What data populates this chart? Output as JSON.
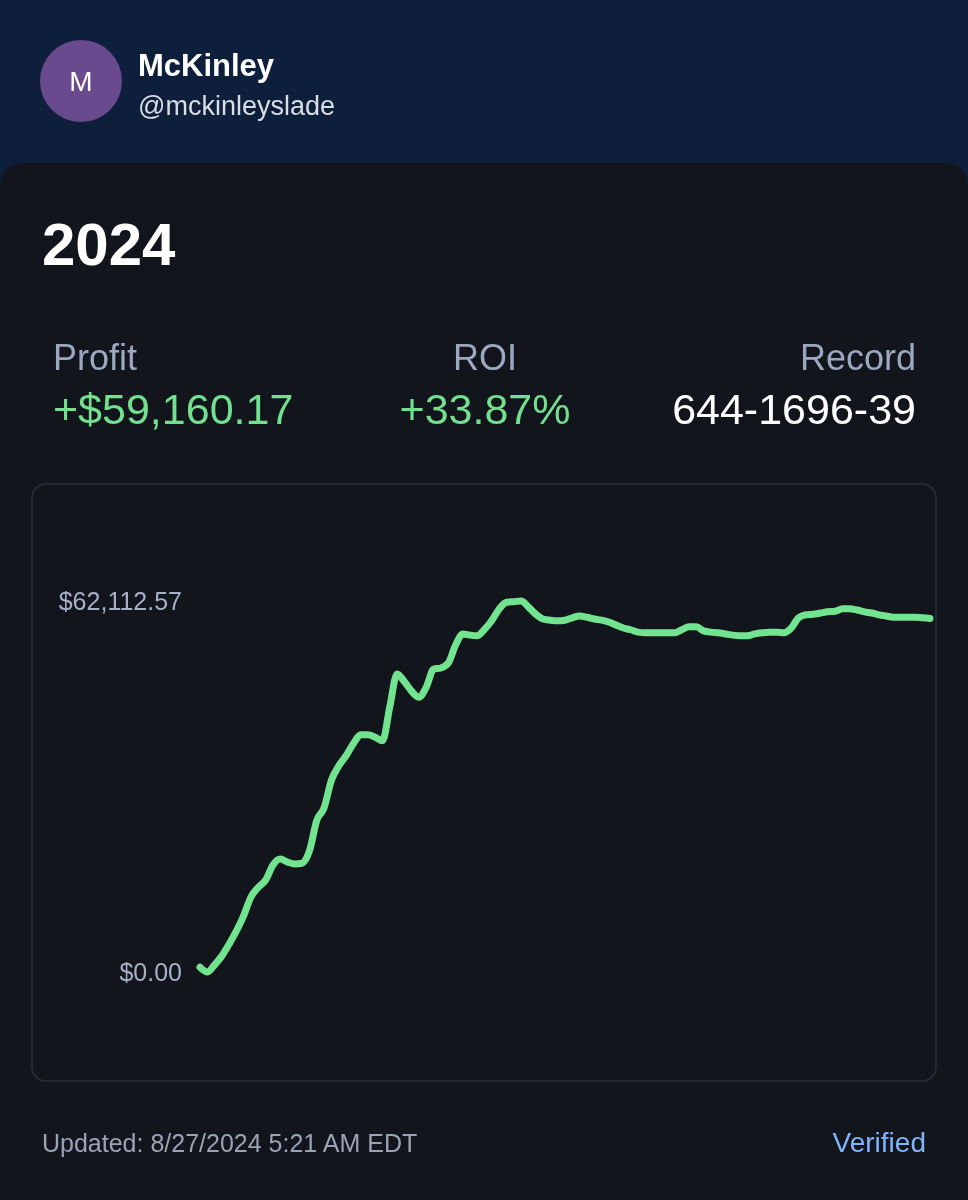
{
  "chart_data": {
    "type": "line",
    "title": "2024",
    "categories": [
      null,
      null,
      null,
      null,
      null,
      null,
      null,
      null,
      null,
      null,
      null,
      null,
      null,
      null,
      null,
      null,
      null,
      null,
      null,
      null,
      null,
      null,
      null,
      null,
      null,
      null,
      null,
      null,
      null,
      null,
      null,
      null,
      null,
      null,
      null,
      null,
      null,
      null,
      null,
      null,
      null,
      null,
      null,
      null,
      null,
      null,
      null,
      null,
      null,
      null,
      null,
      null,
      null,
      null,
      null,
      null,
      null,
      null,
      null,
      null,
      null,
      null,
      null,
      null,
      null,
      null,
      null,
      null,
      null,
      null,
      null,
      null,
      null,
      null,
      null,
      null,
      null,
      null,
      null,
      null,
      null,
      null,
      null,
      null,
      null,
      null,
      null,
      null,
      null,
      null,
      null,
      null,
      null,
      null,
      null,
      null,
      null,
      null,
      null,
      null,
      null
    ],
    "color": "#72e38f",
    "ylim": [
      0,
      62112.57
    ],
    "yticks": [
      {
        "value": 0,
        "label": "$0.00"
      },
      {
        "value": 62112.57,
        "label": "$62,112.57"
      }
    ],
    "values": [
      800,
      0,
      1200,
      2700,
      4700,
      6900,
      9500,
      12600,
      14200,
      15400,
      17900,
      18900,
      18400,
      18100,
      18200,
      20300,
      25400,
      27500,
      32100,
      34500,
      36200,
      38200,
      39700,
      39700,
      39300,
      38700,
      44400,
      49900,
      48600,
      47000,
      46000,
      47700,
      50700,
      50900,
      51700,
      54700,
      56600,
      56400,
      56300,
      57400,
      58900,
      60800,
      61900,
      62000,
      62112.57,
      61100,
      59900,
      59100,
      58900,
      58800,
      58900,
      59300,
      59600,
      59400,
      59100,
      58900,
      58600,
      58100,
      57600,
      57300,
      56900,
      56800,
      56800,
      56800,
      56800,
      56800,
      57300,
      57800,
      57800,
      57100,
      56900,
      56800,
      56600,
      56400,
      56300,
      56300,
      56600,
      56800,
      56900,
      56900,
      56800,
      57600,
      59300,
      59800,
      59900,
      60100,
      60300,
      60400,
      60800,
      60800,
      60600,
      60300,
      60100,
      59800,
      59600,
      59400,
      59400,
      59400,
      59400,
      59300,
      59200
    ],
    "annotations": [
      "M",
      "McKinley",
      "@mckinleyslade",
      "Profit",
      "+$59,160.17",
      "ROI",
      "+33.87%",
      "Record",
      "644-1696-39",
      "Updated: 8/27/2024 5:21 AM EDT",
      "Verified"
    ]
  }
}
